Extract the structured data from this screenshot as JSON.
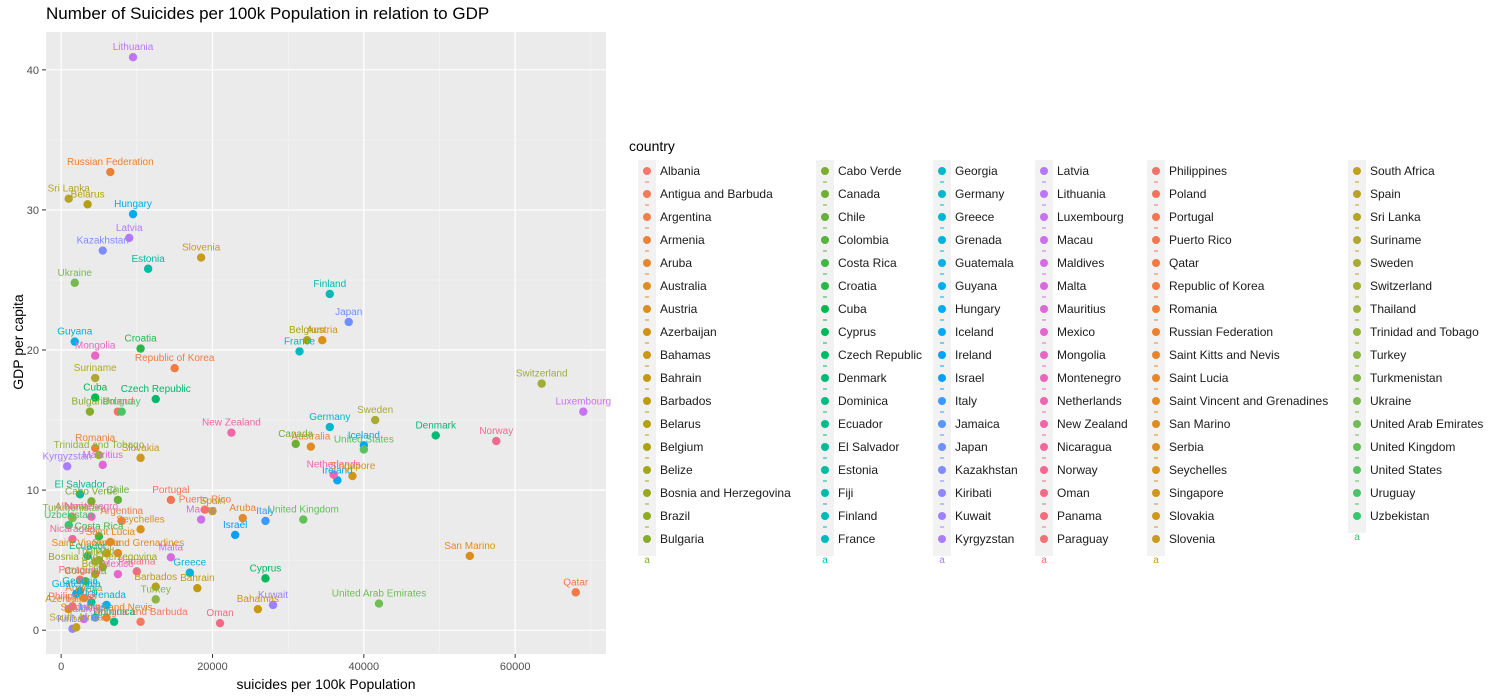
{
  "chart_data": {
    "type": "scatter",
    "title": "Number of Suicides per 100k Population in relation to GDP",
    "xlabel": "suicides per 100k Population",
    "ylabel": "GDP per capita",
    "xlim": [
      -2000,
      72000
    ],
    "ylim": [
      -1.7,
      42.7
    ],
    "x_ticks": [
      0,
      20000,
      40000,
      60000
    ],
    "y_ticks": [
      0,
      10,
      20,
      30,
      40
    ],
    "grid": true,
    "legend_title": "country",
    "legend_position": "right",
    "legend_key_label": "a",
    "points": [
      {
        "country": "Albania",
        "x": 1400,
        "y": 8.1,
        "color": "#F8766D"
      },
      {
        "country": "Antigua and Barbuda",
        "x": 10500,
        "y": 0.6,
        "color": "#F47A5B"
      },
      {
        "country": "Argentina",
        "x": 8000,
        "y": 7.8,
        "color": "#EF7F4C"
      },
      {
        "country": "Armenia",
        "x": 3000,
        "y": 2.3,
        "color": "#EA833C"
      },
      {
        "country": "Aruba",
        "x": 24000,
        "y": 8.0,
        "color": "#E4872F"
      },
      {
        "country": "Australia",
        "x": 33000,
        "y": 13.1,
        "color": "#DE8C24"
      },
      {
        "country": "Austria",
        "x": 34500,
        "y": 20.7,
        "color": "#D8901B"
      },
      {
        "country": "Azerbaijan",
        "x": 1000,
        "y": 1.5,
        "color": "#D19314"
      },
      {
        "country": "Bahamas",
        "x": 26000,
        "y": 1.5,
        "color": "#CA9710"
      },
      {
        "country": "Bahrain",
        "x": 18000,
        "y": 3.0,
        "color": "#C39A0E"
      },
      {
        "country": "Barbados",
        "x": 12500,
        "y": 3.1,
        "color": "#BC9D0E"
      },
      {
        "country": "Belarus",
        "x": 3500,
        "y": 30.4,
        "color": "#B4A010"
      },
      {
        "country": "Belgium",
        "x": 32500,
        "y": 20.7,
        "color": "#ACA314"
      },
      {
        "country": "Belize",
        "x": 4500,
        "y": 4.0,
        "color": "#A3A619"
      },
      {
        "country": "Bosnia and Herzegovina",
        "x": 5500,
        "y": 4.5,
        "color": "#9AA81F"
      },
      {
        "country": "Brazil",
        "x": 5000,
        "y": 5.0,
        "color": "#90AA24"
      },
      {
        "country": "Bulgaria",
        "x": 3800,
        "y": 15.6,
        "color": "#86AC2A"
      },
      {
        "country": "Cabo Verde",
        "x": 4000,
        "y": 9.2,
        "color": "#7BAE2F"
      },
      {
        "country": "Canada",
        "x": 31000,
        "y": 13.3,
        "color": "#6FB034"
      },
      {
        "country": "Chile",
        "x": 7500,
        "y": 9.3,
        "color": "#62B239"
      },
      {
        "country": "Colombia",
        "x": 3200,
        "y": 3.5,
        "color": "#53B43E"
      },
      {
        "country": "Costa Rica",
        "x": 5000,
        "y": 6.7,
        "color": "#41B543"
      },
      {
        "country": "Croatia",
        "x": 10500,
        "y": 20.1,
        "color": "#2AB748"
      },
      {
        "country": "Cuba",
        "x": 4500,
        "y": 16.6,
        "color": "#00B84F"
      },
      {
        "country": "Cyprus",
        "x": 27000,
        "y": 3.7,
        "color": "#00B85C"
      },
      {
        "country": "Czech Republic",
        "x": 12500,
        "y": 16.5,
        "color": "#00B969"
      },
      {
        "country": "Denmark",
        "x": 49500,
        "y": 13.9,
        "color": "#00BA75"
      },
      {
        "country": "Dominica",
        "x": 7000,
        "y": 0.6,
        "color": "#00BA81"
      },
      {
        "country": "Ecuador",
        "x": 3500,
        "y": 5.3,
        "color": "#00BB8C"
      },
      {
        "country": "El Salvador",
        "x": 2500,
        "y": 9.7,
        "color": "#00BB97"
      },
      {
        "country": "Estonia",
        "x": 11500,
        "y": 25.8,
        "color": "#00BBA1"
      },
      {
        "country": "Fiji",
        "x": 4000,
        "y": 2.0,
        "color": "#00BBAB"
      },
      {
        "country": "Finland",
        "x": 35500,
        "y": 24.0,
        "color": "#00BAB5"
      },
      {
        "country": "France",
        "x": 31500,
        "y": 19.9,
        "color": "#00B9BE"
      },
      {
        "country": "Georgia",
        "x": 2500,
        "y": 2.8,
        "color": "#00B8C6"
      },
      {
        "country": "Germany",
        "x": 35500,
        "y": 14.5,
        "color": "#00B7CE"
      },
      {
        "country": "Greece",
        "x": 17000,
        "y": 4.1,
        "color": "#00B5D6"
      },
      {
        "country": "Grenada",
        "x": 6000,
        "y": 1.8,
        "color": "#00B3DD"
      },
      {
        "country": "Guatemala",
        "x": 2000,
        "y": 2.6,
        "color": "#00B1E4"
      },
      {
        "country": "Guyana",
        "x": 1800,
        "y": 20.6,
        "color": "#00AEEA"
      },
      {
        "country": "Hungary",
        "x": 9500,
        "y": 29.7,
        "color": "#00ABF0"
      },
      {
        "country": "Iceland",
        "x": 40000,
        "y": 13.2,
        "color": "#00A8F5"
      },
      {
        "country": "Ireland",
        "x": 36500,
        "y": 10.7,
        "color": "#00A4F9"
      },
      {
        "country": "Israel",
        "x": 23000,
        "y": 6.8,
        "color": "#00A0FC"
      },
      {
        "country": "Italy",
        "x": 27000,
        "y": 7.8,
        "color": "#3A9BFE"
      },
      {
        "country": "Jamaica",
        "x": 4500,
        "y": 0.9,
        "color": "#5896FF"
      },
      {
        "country": "Japan",
        "x": 38000,
        "y": 22.0,
        "color": "#6D91FF"
      },
      {
        "country": "Kazakhstan",
        "x": 5500,
        "y": 27.1,
        "color": "#7F8CFF"
      },
      {
        "country": "Kiribati",
        "x": 1500,
        "y": 0.1,
        "color": "#8F87FF"
      },
      {
        "country": "Kuwait",
        "x": 28000,
        "y": 1.8,
        "color": "#9D82FF"
      },
      {
        "country": "Kyrgyzstan",
        "x": 800,
        "y": 11.7,
        "color": "#A97DFE"
      },
      {
        "country": "Latvia",
        "x": 9000,
        "y": 28.0,
        "color": "#B479FB"
      },
      {
        "country": "Lithuania",
        "x": 9500,
        "y": 40.9,
        "color": "#BE75F7"
      },
      {
        "country": "Luxembourg",
        "x": 69000,
        "y": 15.6,
        "color": "#C672F2"
      },
      {
        "country": "Macau",
        "x": 18500,
        "y": 7.9,
        "color": "#CE6FEC"
      },
      {
        "country": "Maldives",
        "x": 3000,
        "y": 0.8,
        "color": "#D56CE5"
      },
      {
        "country": "Malta",
        "x": 14500,
        "y": 5.2,
        "color": "#DB69DE"
      },
      {
        "country": "Mauritius",
        "x": 5500,
        "y": 11.8,
        "color": "#E068D6"
      },
      {
        "country": "Mexico",
        "x": 7500,
        "y": 4.0,
        "color": "#E566CD"
      },
      {
        "country": "Mongolia",
        "x": 4500,
        "y": 19.6,
        "color": "#E965C4"
      },
      {
        "country": "Montenegro",
        "x": 4000,
        "y": 8.1,
        "color": "#EC65BA"
      },
      {
        "country": "Netherlands",
        "x": 36000,
        "y": 11.1,
        "color": "#EE65B0"
      },
      {
        "country": "New Zealand",
        "x": 22500,
        "y": 14.1,
        "color": "#F066A6"
      },
      {
        "country": "Nicaragua",
        "x": 1500,
        "y": 6.5,
        "color": "#F2679B"
      },
      {
        "country": "Norway",
        "x": 57500,
        "y": 13.5,
        "color": "#F36891"
      },
      {
        "country": "Oman",
        "x": 21000,
        "y": 0.5,
        "color": "#F46A86"
      },
      {
        "country": "Panama",
        "x": 10000,
        "y": 4.2,
        "color": "#F56C7C"
      },
      {
        "country": "Paraguay",
        "x": 2500,
        "y": 3.6,
        "color": "#F56E72"
      },
      {
        "country": "Philippines",
        "x": 1500,
        "y": 1.7,
        "color": "#F57068"
      },
      {
        "country": "Poland",
        "x": 7500,
        "y": 15.6,
        "color": "#F5725F"
      },
      {
        "country": "Portugal",
        "x": 14500,
        "y": 9.3,
        "color": "#F47456"
      },
      {
        "country": "Puerto Rico",
        "x": 19000,
        "y": 8.6,
        "color": "#F3764D"
      },
      {
        "country": "Qatar",
        "x": 68000,
        "y": 2.7,
        "color": "#F27945"
      },
      {
        "country": "Republic of Korea",
        "x": 15000,
        "y": 18.7,
        "color": "#F07B3E"
      },
      {
        "country": "Romania",
        "x": 4500,
        "y": 13.0,
        "color": "#EE7E37"
      },
      {
        "country": "Russian Federation",
        "x": 6500,
        "y": 32.7,
        "color": "#EC8031"
      },
      {
        "country": "Saint Kitts and Nevis",
        "x": 6000,
        "y": 0.9,
        "color": "#E9832B"
      },
      {
        "country": "Saint Lucia",
        "x": 6500,
        "y": 6.3,
        "color": "#E68626"
      },
      {
        "country": "Saint Vincent and Grenadines",
        "x": 7500,
        "y": 5.5,
        "color": "#E38922"
      },
      {
        "country": "San Marino",
        "x": 54000,
        "y": 5.3,
        "color": "#DF8C1F"
      },
      {
        "country": "Serbia",
        "x": 6000,
        "y": 5.5,
        "color": "#DB8F1D"
      },
      {
        "country": "Seychelles",
        "x": 10500,
        "y": 7.2,
        "color": "#D7921C"
      },
      {
        "country": "Singapore",
        "x": 38500,
        "y": 11.0,
        "color": "#D2951C"
      },
      {
        "country": "Slovakia",
        "x": 10500,
        "y": 12.3,
        "color": "#CD981D"
      },
      {
        "country": "Slovenia",
        "x": 18500,
        "y": 26.6,
        "color": "#C89B1F"
      },
      {
        "country": "South Africa",
        "x": 2000,
        "y": 0.2,
        "color": "#C29E21"
      },
      {
        "country": "Spain",
        "x": 20000,
        "y": 8.5,
        "color": "#BCA124"
      },
      {
        "country": "Sri Lanka",
        "x": 1000,
        "y": 30.8,
        "color": "#B6A428"
      },
      {
        "country": "Suriname",
        "x": 4500,
        "y": 18.0,
        "color": "#B0A72C"
      },
      {
        "country": "Sweden",
        "x": 41500,
        "y": 15.0,
        "color": "#A9AA30"
      },
      {
        "country": "Switzerland",
        "x": 63500,
        "y": 17.6,
        "color": "#A2AD35"
      },
      {
        "country": "Thailand",
        "x": 4500,
        "y": 4.9,
        "color": "#9BB03A"
      },
      {
        "country": "Trinidad and Tobago",
        "x": 5000,
        "y": 12.5,
        "color": "#93B33F"
      },
      {
        "country": "Turkey",
        "x": 12500,
        "y": 2.2,
        "color": "#8BB544"
      },
      {
        "country": "Turkmenistan",
        "x": 1500,
        "y": 8.0,
        "color": "#82B849"
      },
      {
        "country": "Ukraine",
        "x": 1800,
        "y": 24.8,
        "color": "#79BA4F"
      },
      {
        "country": "United Arab Emirates",
        "x": 42000,
        "y": 1.9,
        "color": "#6FBD54"
      },
      {
        "country": "United Kingdom",
        "x": 32000,
        "y": 7.9,
        "color": "#64BF5A"
      },
      {
        "country": "United States",
        "x": 40000,
        "y": 12.9,
        "color": "#58C160"
      },
      {
        "country": "Uruguay",
        "x": 8000,
        "y": 15.6,
        "color": "#4AC466"
      },
      {
        "country": "Uzbekistan",
        "x": 1000,
        "y": 7.5,
        "color": "#39C66C"
      }
    ]
  }
}
